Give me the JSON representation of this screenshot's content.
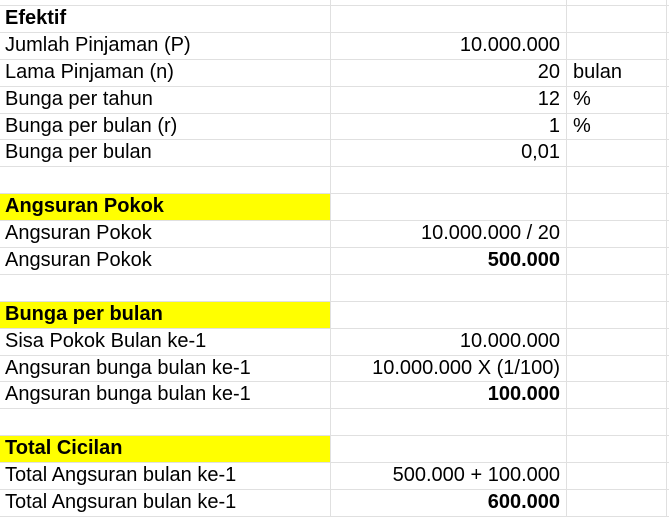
{
  "sheet": {
    "grid_color": "#e0e0e0",
    "highlight_color": "#ffff00",
    "text_color": "#000000",
    "columns": [
      {
        "name": "label"
      },
      {
        "name": "value"
      },
      {
        "name": "unit"
      }
    ],
    "rows": [
      {
        "label": "Efektif",
        "value": "",
        "unit": "",
        "label_bold": true,
        "highlight": false,
        "value_bold": false
      },
      {
        "label": "Jumlah Pinjaman (P)",
        "value": "10.000.000",
        "unit": "",
        "label_bold": false,
        "highlight": false,
        "value_bold": false
      },
      {
        "label": "Lama Pinjaman (n)",
        "value": "20",
        "unit": "bulan",
        "label_bold": false,
        "highlight": false,
        "value_bold": false
      },
      {
        "label": "Bunga per tahun",
        "value": "12",
        "unit": "%",
        "label_bold": false,
        "highlight": false,
        "value_bold": false
      },
      {
        "label": "Bunga per bulan (r)",
        "value": "1",
        "unit": "%",
        "label_bold": false,
        "highlight": false,
        "value_bold": false
      },
      {
        "label": "Bunga per bulan",
        "value": "0,01",
        "unit": "",
        "label_bold": false,
        "highlight": false,
        "value_bold": false
      },
      {
        "label": "",
        "value": "",
        "unit": "",
        "label_bold": false,
        "highlight": false,
        "value_bold": false
      },
      {
        "label": "Angsuran Pokok",
        "value": "",
        "unit": "",
        "label_bold": true,
        "highlight": true,
        "value_bold": false
      },
      {
        "label": "Angsuran Pokok",
        "value": "10.000.000 / 20",
        "unit": "",
        "label_bold": false,
        "highlight": false,
        "value_bold": false
      },
      {
        "label": "Angsuran Pokok",
        "value": "500.000",
        "unit": "",
        "label_bold": false,
        "highlight": false,
        "value_bold": true
      },
      {
        "label": "",
        "value": "",
        "unit": "",
        "label_bold": false,
        "highlight": false,
        "value_bold": false
      },
      {
        "label": "Bunga per bulan",
        "value": "",
        "unit": "",
        "label_bold": true,
        "highlight": true,
        "value_bold": false
      },
      {
        "label": "Sisa Pokok Bulan ke-1",
        "value": "10.000.000",
        "unit": "",
        "label_bold": false,
        "highlight": false,
        "value_bold": false
      },
      {
        "label": "Angsuran bunga bulan ke-1",
        "value": "10.000.000 X (1/100)",
        "unit": "",
        "label_bold": false,
        "highlight": false,
        "value_bold": false
      },
      {
        "label": "Angsuran bunga bulan ke-1",
        "value": "100.000",
        "unit": "",
        "label_bold": false,
        "highlight": false,
        "value_bold": true
      },
      {
        "label": "",
        "value": "",
        "unit": "",
        "label_bold": false,
        "highlight": false,
        "value_bold": false
      },
      {
        "label": "Total Cicilan",
        "value": "",
        "unit": "",
        "label_bold": true,
        "highlight": true,
        "value_bold": false
      },
      {
        "label": "Total Angsuran bulan ke-1",
        "value": "500.000 + 100.000",
        "unit": "",
        "label_bold": false,
        "highlight": false,
        "value_bold": false
      },
      {
        "label": "Total Angsuran bulan ke-1",
        "value": "600.000",
        "unit": "",
        "label_bold": false,
        "highlight": false,
        "value_bold": true
      }
    ]
  }
}
